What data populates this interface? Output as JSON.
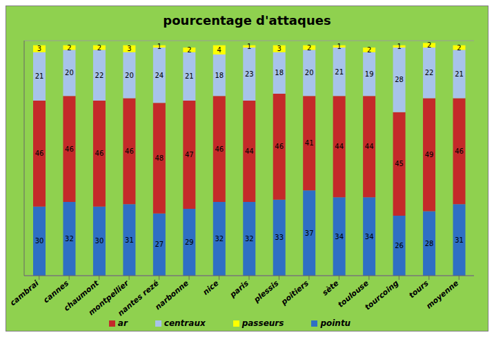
{
  "chart_data": {
    "type": "bar",
    "title": "pourcentage d'attaques",
    "categories": [
      "cambrai",
      "cannes",
      "chaumont",
      "montpellier",
      "nantes rezé",
      "narbonne",
      "nice",
      "paris",
      "plessis",
      "poitiers",
      "sète",
      "toulouse",
      "tourcoing",
      "tours",
      "moyenne"
    ],
    "series": [
      {
        "name": "pointu",
        "color": "#2f6fc4",
        "values": [
          30,
          32,
          30,
          31,
          27,
          29,
          32,
          32,
          33,
          37,
          34,
          34,
          26,
          28,
          31
        ]
      },
      {
        "name": "ar",
        "color": "#c42a2a",
        "values": [
          46,
          46,
          46,
          46,
          48,
          47,
          46,
          44,
          46,
          41,
          44,
          44,
          45,
          49,
          46
        ]
      },
      {
        "name": "centraux",
        "color": "#a8c3ea",
        "values": [
          21,
          20,
          22,
          20,
          24,
          21,
          18,
          23,
          18,
          20,
          21,
          19,
          28,
          22,
          21
        ]
      },
      {
        "name": "passeurs",
        "color": "#ffff00",
        "values": [
          3,
          2,
          2,
          3,
          1,
          2,
          4,
          1,
          3,
          2,
          1,
          2,
          1,
          2,
          2
        ]
      }
    ],
    "ylim": [
      0,
      102
    ],
    "yticks": [
      0,
      10,
      20,
      30,
      40,
      50,
      60,
      70,
      80,
      90,
      100
    ],
    "grid": true,
    "stacked": true,
    "data_labels": true,
    "tick_labels": "x",
    "legend": "bottom"
  }
}
